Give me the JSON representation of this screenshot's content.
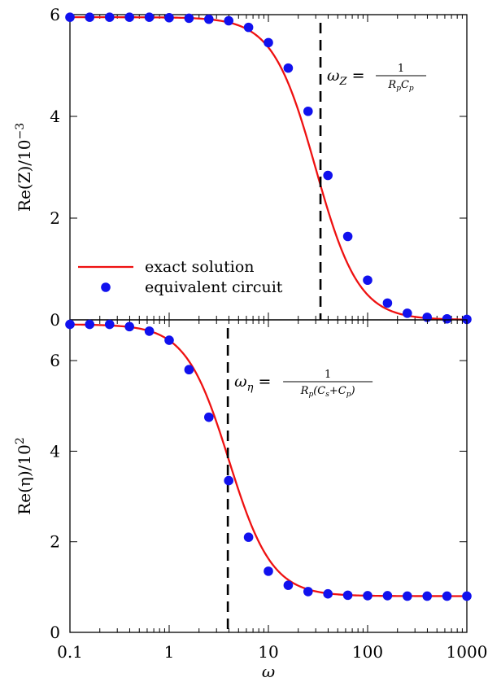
{
  "chart_data": [
    {
      "type": "line",
      "panel": "top",
      "ylabel": "Re(Z)/10",
      "ylabel_exp": "−3",
      "xlabel": "",
      "xscale": "log",
      "xlim": [
        0.1,
        1000
      ],
      "ylim": [
        0,
        6
      ],
      "yticks": [
        0,
        2,
        4,
        6
      ],
      "ytick_labels": [
        "0",
        "2",
        "4",
        "6"
      ],
      "legend": {
        "position": "bottom-left",
        "line_label": "exact solution",
        "points_label": "equivalent circuit"
      },
      "curve": {
        "name": "exact solution",
        "color": "#ee1111",
        "model": "1/(1+(omega/wc)^2)",
        "amplitude": 5.95,
        "offset": 0.0,
        "wc": 30
      },
      "points": {
        "name": "equivalent circuit",
        "color": "#1111ee",
        "x": [
          0.1,
          0.158,
          0.251,
          0.398,
          0.631,
          1.0,
          1.585,
          2.512,
          3.981,
          6.31,
          10,
          15.85,
          25.12,
          39.81,
          63.1,
          100,
          158.5,
          251.2,
          398.1,
          631,
          1000
        ],
        "y": [
          5.95,
          5.95,
          5.95,
          5.95,
          5.95,
          5.94,
          5.93,
          5.91,
          5.88,
          5.75,
          5.45,
          4.95,
          4.1,
          2.84,
          1.64,
          0.78,
          0.33,
          0.13,
          0.05,
          0.02,
          0.01
        ]
      },
      "vline": {
        "x": 33.5,
        "style": "dashed"
      },
      "annotation": {
        "lhs": "ω",
        "lhs_sub": "Z",
        "num": "1",
        "den": "R",
        "den_parts": [
          "R",
          "p",
          "C",
          "p"
        ]
      }
    },
    {
      "type": "line",
      "panel": "bottom",
      "ylabel": "Re(η)/10",
      "ylabel_exp": "2",
      "xlabel": "ω",
      "xscale": "log",
      "xlim": [
        0.1,
        1000
      ],
      "ylim": [
        0,
        6.9
      ],
      "xticks": [
        0.1,
        1,
        10,
        100,
        1000
      ],
      "xtick_labels": [
        "0.1",
        "1",
        "10",
        "100",
        "1000"
      ],
      "yticks": [
        0,
        2,
        4,
        6
      ],
      "ytick_labels": [
        "0",
        "2",
        "4",
        "6"
      ],
      "curve": {
        "name": "exact solution",
        "color": "#ee1111",
        "model": "offset+amp/(1+(omega/wc)^2)",
        "amplitude": 6.0,
        "offset": 0.8,
        "wc": 4.0
      },
      "points": {
        "name": "equivalent circuit",
        "color": "#1111ee",
        "x": [
          0.1,
          0.158,
          0.251,
          0.398,
          0.631,
          1.0,
          1.585,
          2.512,
          3.981,
          6.31,
          10,
          15.85,
          25.12,
          39.81,
          63.1,
          100,
          158.5,
          251.2,
          398.1,
          631,
          1000
        ],
        "y": [
          6.8,
          6.8,
          6.8,
          6.75,
          6.65,
          6.45,
          5.8,
          4.75,
          3.35,
          2.1,
          1.35,
          1.04,
          0.9,
          0.85,
          0.82,
          0.81,
          0.81,
          0.8,
          0.8,
          0.8,
          0.8
        ]
      },
      "vline": {
        "x": 3.9,
        "style": "dashed"
      },
      "annotation": {
        "lhs": "ω",
        "lhs_sub": "η",
        "num": "1",
        "den_parts": [
          "R",
          "p",
          "(C",
          "s",
          "+C",
          "p",
          ")"
        ]
      }
    }
  ]
}
